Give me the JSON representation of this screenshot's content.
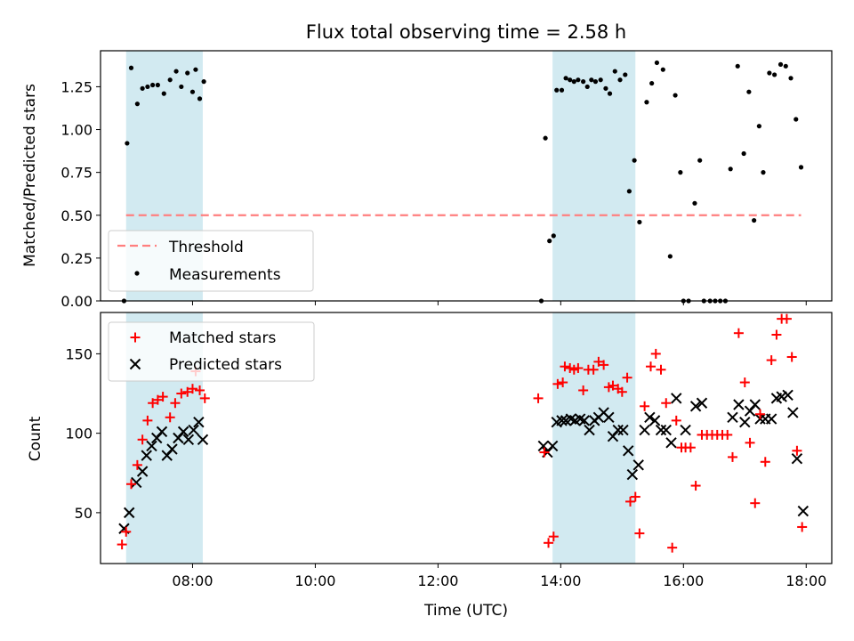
{
  "title": "Flux total observing time = 2.58 h",
  "colors": {
    "shade": "#add8e6",
    "threshold": "#ff7f7f",
    "matched": "#ff0000",
    "predicted": "#000000",
    "measure": "#000000"
  },
  "chart_data": [
    {
      "type": "scatter",
      "ylabel": "Matched/Predicted stars",
      "ylim": [
        0,
        1.46
      ],
      "yticks": [
        0.0,
        0.25,
        0.5,
        0.75,
        1.0,
        1.25
      ],
      "ytick_labels": [
        "0.00",
        "0.25",
        "0.50",
        "0.75",
        "1.00",
        "1.25"
      ],
      "legend": {
        "placement": "lower-left",
        "threshold_label": "Threshold",
        "measure_label": "Measurements"
      },
      "threshold": {
        "value": 0.5,
        "x_range": [
          "06:55",
          "17:55"
        ]
      },
      "shaded_ranges": [
        [
          "06:55",
          "08:10"
        ],
        [
          "13:52",
          "15:13"
        ]
      ],
      "measurements": [
        [
          "06:53",
          0.0
        ],
        [
          "06:56",
          0.92
        ],
        [
          "07:00",
          1.36
        ],
        [
          "07:06",
          1.15
        ],
        [
          "07:11",
          1.24
        ],
        [
          "07:16",
          1.25
        ],
        [
          "07:21",
          1.26
        ],
        [
          "07:26",
          1.26
        ],
        [
          "07:32",
          1.21
        ],
        [
          "07:38",
          1.29
        ],
        [
          "07:44",
          1.34
        ],
        [
          "07:49",
          1.25
        ],
        [
          "07:55",
          1.33
        ],
        [
          "08:00",
          1.22
        ],
        [
          "08:03",
          1.35
        ],
        [
          "08:07",
          1.18
        ],
        [
          "08:11",
          1.28
        ],
        [
          "13:41",
          0.0
        ],
        [
          "13:45",
          0.95
        ],
        [
          "13:49",
          0.35
        ],
        [
          "13:53",
          0.38
        ],
        [
          "13:56",
          1.23
        ],
        [
          "14:01",
          1.23
        ],
        [
          "14:05",
          1.3
        ],
        [
          "14:09",
          1.29
        ],
        [
          "14:13",
          1.28
        ],
        [
          "14:17",
          1.29
        ],
        [
          "14:22",
          1.28
        ],
        [
          "14:26",
          1.25
        ],
        [
          "14:30",
          1.29
        ],
        [
          "14:34",
          1.28
        ],
        [
          "14:39",
          1.29
        ],
        [
          "14:44",
          1.24
        ],
        [
          "14:48",
          1.21
        ],
        [
          "14:53",
          1.34
        ],
        [
          "14:58",
          1.29
        ],
        [
          "15:03",
          1.32
        ],
        [
          "15:07",
          0.64
        ],
        [
          "15:12",
          0.82
        ],
        [
          "15:17",
          0.46
        ],
        [
          "15:24",
          1.16
        ],
        [
          "15:29",
          1.27
        ],
        [
          "15:34",
          1.39
        ],
        [
          "15:40",
          1.35
        ],
        [
          "15:47",
          0.26
        ],
        [
          "15:52",
          1.2
        ],
        [
          "15:57",
          0.75
        ],
        [
          "16:00",
          0.0
        ],
        [
          "16:05",
          0.0
        ],
        [
          "16:11",
          0.57
        ],
        [
          "16:16",
          0.82
        ],
        [
          "16:20",
          0.0
        ],
        [
          "16:26",
          0.0
        ],
        [
          "16:31",
          0.0
        ],
        [
          "16:36",
          0.0
        ],
        [
          "16:41",
          0.0
        ],
        [
          "16:46",
          0.77
        ],
        [
          "16:53",
          1.37
        ],
        [
          "16:59",
          0.86
        ],
        [
          "17:04",
          1.22
        ],
        [
          "17:09",
          0.47
        ],
        [
          "17:14",
          1.02
        ],
        [
          "17:18",
          0.75
        ],
        [
          "17:24",
          1.33
        ],
        [
          "17:29",
          1.32
        ],
        [
          "17:35",
          1.38
        ],
        [
          "17:40",
          1.37
        ],
        [
          "17:45",
          1.3
        ],
        [
          "17:50",
          1.06
        ],
        [
          "17:55",
          0.78
        ]
      ]
    },
    {
      "type": "scatter",
      "xlabel": "Time (UTC)",
      "ylabel": "Count",
      "xlim": [
        "06:30",
        "18:25"
      ],
      "ylim": [
        18,
        176
      ],
      "xticks": [
        "08:00",
        "10:00",
        "12:00",
        "14:00",
        "16:00",
        "18:00"
      ],
      "yticks": [
        50,
        100,
        150
      ],
      "legend": {
        "placement": "top-left",
        "matched_label": "Matched stars",
        "predicted_label": "Predicted stars"
      },
      "matched": [
        [
          "06:51",
          30
        ],
        [
          "06:55",
          38
        ],
        [
          "07:00",
          68
        ],
        [
          "07:06",
          80
        ],
        [
          "07:11",
          96
        ],
        [
          "07:16",
          108
        ],
        [
          "07:21",
          119
        ],
        [
          "07:26",
          121
        ],
        [
          "07:31",
          123
        ],
        [
          "07:38",
          110
        ],
        [
          "07:43",
          119
        ],
        [
          "07:49",
          125
        ],
        [
          "07:55",
          126
        ],
        [
          "08:00",
          128
        ],
        [
          "08:03",
          139
        ],
        [
          "08:07",
          127
        ],
        [
          "08:12",
          122
        ],
        [
          "13:38",
          122
        ],
        [
          "13:44",
          88
        ],
        [
          "13:48",
          31
        ],
        [
          "13:53",
          35
        ],
        [
          "13:57",
          131
        ],
        [
          "14:02",
          132
        ],
        [
          "14:04",
          142
        ],
        [
          "14:09",
          141
        ],
        [
          "14:13",
          140
        ],
        [
          "14:17",
          141
        ],
        [
          "14:22",
          127
        ],
        [
          "14:27",
          140
        ],
        [
          "14:32",
          140
        ],
        [
          "14:37",
          145
        ],
        [
          "14:42",
          143
        ],
        [
          "14:47",
          129
        ],
        [
          "14:51",
          130
        ],
        [
          "14:56",
          128
        ],
        [
          "15:00",
          126
        ],
        [
          "15:05",
          135
        ],
        [
          "15:08",
          57
        ],
        [
          "15:13",
          60
        ],
        [
          "15:17",
          37
        ],
        [
          "15:22",
          117
        ],
        [
          "15:28",
          142
        ],
        [
          "15:33",
          150
        ],
        [
          "15:38",
          140
        ],
        [
          "15:43",
          119
        ],
        [
          "15:49",
          28
        ],
        [
          "15:53",
          108
        ],
        [
          "15:58",
          91
        ],
        [
          "16:02",
          91
        ],
        [
          "16:07",
          91
        ],
        [
          "16:12",
          67
        ],
        [
          "16:18",
          99
        ],
        [
          "16:23",
          99
        ],
        [
          "16:28",
          99
        ],
        [
          "16:33",
          99
        ],
        [
          "16:38",
          99
        ],
        [
          "16:43",
          99
        ],
        [
          "16:48",
          85
        ],
        [
          "16:54",
          163
        ],
        [
          "17:00",
          132
        ],
        [
          "17:05",
          94
        ],
        [
          "17:10",
          56
        ],
        [
          "17:15",
          112
        ],
        [
          "17:20",
          82
        ],
        [
          "17:26",
          146
        ],
        [
          "17:31",
          162
        ],
        [
          "17:36",
          172
        ],
        [
          "17:41",
          172
        ],
        [
          "17:46",
          148
        ],
        [
          "17:51",
          89
        ],
        [
          "17:56",
          41
        ]
      ],
      "predicted": [
        [
          "06:53",
          40
        ],
        [
          "06:58",
          50
        ],
        [
          "07:05",
          69
        ],
        [
          "07:11",
          76
        ],
        [
          "07:15",
          86
        ],
        [
          "07:20",
          92
        ],
        [
          "07:25",
          97
        ],
        [
          "07:30",
          101
        ],
        [
          "07:35",
          86
        ],
        [
          "07:40",
          90
        ],
        [
          "07:46",
          97
        ],
        [
          "07:51",
          101
        ],
        [
          "07:56",
          96
        ],
        [
          "08:01",
          102
        ],
        [
          "08:06",
          107
        ],
        [
          "08:10",
          96
        ],
        [
          "13:43",
          92
        ],
        [
          "13:47",
          88
        ],
        [
          "13:52",
          92
        ],
        [
          "13:56",
          107
        ],
        [
          "14:01",
          108
        ],
        [
          "14:05",
          108
        ],
        [
          "14:10",
          109
        ],
        [
          "14:14",
          108
        ],
        [
          "14:19",
          109
        ],
        [
          "14:23",
          108
        ],
        [
          "14:28",
          102
        ],
        [
          "14:33",
          108
        ],
        [
          "14:37",
          110
        ],
        [
          "14:42",
          113
        ],
        [
          "14:47",
          110
        ],
        [
          "14:51",
          98
        ],
        [
          "14:56",
          102
        ],
        [
          "15:01",
          102
        ],
        [
          "15:06",
          89
        ],
        [
          "15:10",
          74
        ],
        [
          "15:16",
          80
        ],
        [
          "15:22",
          102
        ],
        [
          "15:27",
          110
        ],
        [
          "15:32",
          108
        ],
        [
          "15:38",
          102
        ],
        [
          "15:43",
          102
        ],
        [
          "15:48",
          94
        ],
        [
          "15:53",
          122
        ],
        [
          "16:02",
          102
        ],
        [
          "16:12",
          117
        ],
        [
          "16:18",
          119
        ],
        [
          "16:48",
          110
        ],
        [
          "16:54",
          118
        ],
        [
          "17:00",
          107
        ],
        [
          "17:05",
          114
        ],
        [
          "17:10",
          118
        ],
        [
          "17:15",
          109
        ],
        [
          "17:20",
          109
        ],
        [
          "17:26",
          109
        ],
        [
          "17:31",
          122
        ],
        [
          "17:36",
          123
        ],
        [
          "17:42",
          124
        ],
        [
          "17:47",
          113
        ],
        [
          "17:51",
          84
        ],
        [
          "17:57",
          51
        ]
      ]
    }
  ]
}
